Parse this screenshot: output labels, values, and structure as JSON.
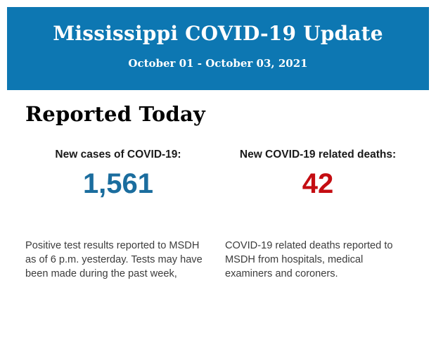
{
  "header": {
    "title": "Mississippi COVID-19 Update",
    "date_range": "October 01 - October 03, 2021",
    "background_color": "#0d77b2",
    "text_color": "#ffffff"
  },
  "section": {
    "heading": "Reported Today"
  },
  "stats": [
    {
      "label": "New cases of COVID-19:",
      "value": "1,561",
      "value_color": "#1b6d9e",
      "description": "Positive test results reported to MSDH as of 6 p.m. yesterday. Tests may have been made during the past week,"
    },
    {
      "label": "New COVID-19 related deaths:",
      "value": "42",
      "value_color": "#c40d12",
      "description": "COVID-19 related deaths reported to MSDH from hospitals, medical examiners and coroners."
    }
  ]
}
